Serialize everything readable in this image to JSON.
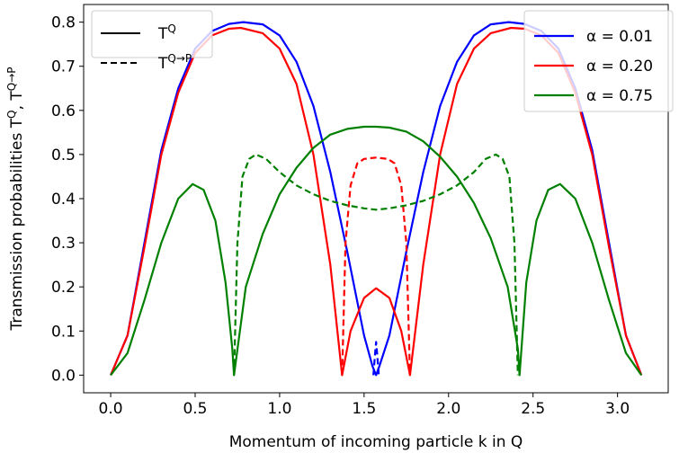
{
  "chart_data": {
    "type": "line",
    "xlabel": "Momentum of incoming particle k in Q",
    "ylabel": "Transmission probabilities T^Q, T^{Q→P}",
    "xlim": [
      -0.16,
      3.3
    ],
    "ylim": [
      -0.04,
      0.84
    ],
    "xticks": [
      0.0,
      0.5,
      1.0,
      1.5,
      2.0,
      2.5,
      3.0
    ],
    "yticks": [
      0.0,
      0.1,
      0.2,
      0.3,
      0.4,
      0.5,
      0.6,
      0.7,
      0.8
    ],
    "xtick_labels": [
      "0.0",
      "0.5",
      "1.0",
      "1.5",
      "2.0",
      "2.5",
      "3.0"
    ],
    "ytick_labels": [
      "0.0",
      "0.1",
      "0.2",
      "0.3",
      "0.4",
      "0.5",
      "0.6",
      "0.7",
      "0.8"
    ],
    "grid": false,
    "style_legend": {
      "position": "top-left",
      "entries": [
        {
          "label_base": "T",
          "label_sup": "Q",
          "dash": "solid"
        },
        {
          "label_base": "T",
          "label_sup": "Q→P",
          "dash": "dashed"
        }
      ]
    },
    "series_legend": {
      "position": "top-right",
      "entries": [
        {
          "label": "α = 0.01",
          "color": "#0000ff"
        },
        {
          "label": "α = 0.20",
          "color": "#ff0000"
        },
        {
          "label": "α = 0.75",
          "color": "#008000"
        }
      ]
    },
    "series": [
      {
        "name": "α = 0.01",
        "kind": "T^Q",
        "color": "#0000ff",
        "dash": "solid",
        "x": [
          0.0,
          0.1,
          0.2,
          0.3,
          0.4,
          0.5,
          0.6,
          0.7,
          0.785,
          0.9,
          1.0,
          1.1,
          1.2,
          1.3,
          1.4,
          1.5,
          1.55,
          1.571,
          1.59,
          1.65,
          1.75,
          1.85,
          1.95,
          2.05,
          2.15,
          2.25,
          2.356,
          2.45,
          2.55,
          2.65,
          2.75,
          2.85,
          2.95,
          3.05,
          3.1416
        ],
        "y": [
          0.0,
          0.09,
          0.3,
          0.51,
          0.65,
          0.74,
          0.78,
          0.796,
          0.8,
          0.795,
          0.77,
          0.71,
          0.61,
          0.46,
          0.28,
          0.09,
          0.02,
          0.0,
          0.02,
          0.09,
          0.28,
          0.46,
          0.61,
          0.71,
          0.77,
          0.795,
          0.8,
          0.796,
          0.78,
          0.74,
          0.65,
          0.51,
          0.3,
          0.09,
          0.0
        ]
      },
      {
        "name": "α = 0.01",
        "kind": "T^{Q→P}",
        "color": "#0000ff",
        "dash": "dashed",
        "x": [
          1.555,
          1.565,
          1.571,
          1.577,
          1.587
        ],
        "y": [
          0.0,
          0.05,
          0.075,
          0.05,
          0.0
        ]
      },
      {
        "name": "α = 0.20",
        "kind": "T^Q",
        "color": "#ff0000",
        "dash": "solid",
        "x": [
          0.0,
          0.1,
          0.2,
          0.3,
          0.4,
          0.5,
          0.6,
          0.7,
          0.77,
          0.9,
          1.0,
          1.1,
          1.2,
          1.3,
          1.37,
          1.42,
          1.5,
          1.571,
          1.65,
          1.72,
          1.772,
          1.85,
          1.95,
          2.05,
          2.15,
          2.25,
          2.37,
          2.45,
          2.55,
          2.65,
          2.75,
          2.85,
          2.95,
          3.05,
          3.1416
        ],
        "y": [
          0.0,
          0.09,
          0.29,
          0.5,
          0.64,
          0.73,
          0.77,
          0.785,
          0.787,
          0.775,
          0.74,
          0.66,
          0.5,
          0.25,
          0.0,
          0.1,
          0.175,
          0.197,
          0.175,
          0.1,
          0.0,
          0.25,
          0.5,
          0.66,
          0.74,
          0.775,
          0.787,
          0.785,
          0.77,
          0.73,
          0.64,
          0.5,
          0.29,
          0.09,
          0.0
        ]
      },
      {
        "name": "α = 0.20",
        "kind": "T^{Q→P}",
        "color": "#ff0000",
        "dash": "dashed",
        "x": [
          1.37,
          1.39,
          1.42,
          1.46,
          1.5,
          1.571,
          1.64,
          1.68,
          1.72,
          1.75,
          1.772
        ],
        "y": [
          0.0,
          0.3,
          0.43,
          0.48,
          0.49,
          0.493,
          0.49,
          0.48,
          0.43,
          0.3,
          0.0
        ]
      },
      {
        "name": "α = 0.75",
        "kind": "T^Q",
        "color": "#008000",
        "dash": "solid",
        "x": [
          0.0,
          0.1,
          0.2,
          0.3,
          0.4,
          0.485,
          0.55,
          0.62,
          0.68,
          0.72,
          0.73,
          0.8,
          0.9,
          1.0,
          1.1,
          1.2,
          1.3,
          1.4,
          1.5,
          1.571,
          1.65,
          1.75,
          1.85,
          1.95,
          2.05,
          2.15,
          2.25,
          2.35,
          2.41,
          2.42,
          2.46,
          2.52,
          2.59,
          2.66,
          2.75,
          2.85,
          2.95,
          3.05,
          3.1416
        ],
        "y": [
          0.0,
          0.05,
          0.17,
          0.3,
          0.4,
          0.433,
          0.42,
          0.35,
          0.21,
          0.06,
          0.0,
          0.2,
          0.32,
          0.41,
          0.47,
          0.515,
          0.545,
          0.558,
          0.563,
          0.563,
          0.561,
          0.552,
          0.53,
          0.495,
          0.45,
          0.39,
          0.31,
          0.2,
          0.06,
          0.0,
          0.21,
          0.35,
          0.42,
          0.433,
          0.4,
          0.3,
          0.17,
          0.05,
          0.0
        ]
      },
      {
        "name": "α = 0.75",
        "kind": "T^{Q→P}",
        "color": "#008000",
        "dash": "dashed",
        "x": [
          0.73,
          0.75,
          0.78,
          0.82,
          0.86,
          0.92,
          1.0,
          1.1,
          1.2,
          1.3,
          1.4,
          1.5,
          1.571,
          1.65,
          1.75,
          1.85,
          1.95,
          2.05,
          2.15,
          2.22,
          2.28,
          2.32,
          2.36,
          2.39,
          2.41
        ],
        "y": [
          0.0,
          0.3,
          0.45,
          0.49,
          0.5,
          0.49,
          0.46,
          0.43,
          0.41,
          0.395,
          0.385,
          0.378,
          0.375,
          0.378,
          0.385,
          0.395,
          0.41,
          0.43,
          0.46,
          0.49,
          0.5,
          0.49,
          0.45,
          0.3,
          0.0
        ]
      }
    ]
  }
}
